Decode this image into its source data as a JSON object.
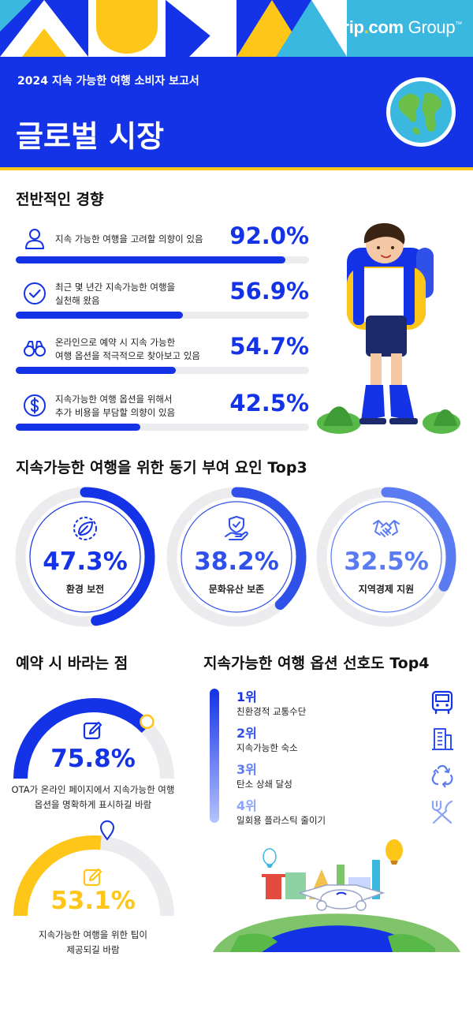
{
  "header": {
    "logo": {
      "part1": "Trip",
      "dot": ".",
      "part2": "com",
      "part3": " Group",
      "tm": "™"
    },
    "report_label": "2024 지속 가능한 여행 소비자 보고서",
    "title": "글로벌 시장"
  },
  "colors": {
    "blue": "#1432e6",
    "yellow": "#ffc61a",
    "light_blue": "#5b7bf2",
    "cyan": "#3ab8e0",
    "gray_track": "#ececef"
  },
  "overall": {
    "title": "전반적인 경향",
    "items": [
      {
        "icon": "person-icon",
        "label_lines": [
          "지속 가능한 여행을 고려할 의향이 있음"
        ],
        "value": "92.0%",
        "fraction": 0.92
      },
      {
        "icon": "check-circle-icon",
        "label_lines": [
          "최근 몇 년간 지속가능한 여행을",
          "실천해 왔음"
        ],
        "value": "56.9%",
        "fraction": 0.569
      },
      {
        "icon": "binoculars-icon",
        "label_lines": [
          "온라인으로 예약 시 지속 가능한",
          "여행 옵션을 적극적으로 찾아보고 있음"
        ],
        "value": "54.7%",
        "fraction": 0.547
      },
      {
        "icon": "dollar-coin-icon",
        "label_lines": [
          "지속가능한 여행 옵션을 위해서",
          "추가 비용을 부담할 의향이 있음"
        ],
        "value": "42.5%",
        "fraction": 0.425
      }
    ]
  },
  "motivations": {
    "title": "지속가능한 여행을 위한 동기 부여 요인 Top3",
    "items": [
      {
        "icon": "leaf-badge-icon",
        "value": "47.3%",
        "label": "환경 보전",
        "fraction": 0.473,
        "color": "#1432e6"
      },
      {
        "icon": "hand-shield-icon",
        "value": "38.2%",
        "label": "문화유산 보존",
        "fraction": 0.382,
        "color": "#3050ea"
      },
      {
        "icon": "handshake-icon",
        "value": "32.5%",
        "label": "지역경제 지원",
        "fraction": 0.325,
        "color": "#5b7bf2"
      }
    ]
  },
  "booking": {
    "title": "예약 시 바라는 점",
    "items": [
      {
        "icon": "edit-icon",
        "value": "75.8%",
        "fraction": 0.758,
        "color": "#1432e6",
        "text_lines": [
          "OTA가 온라인 페이지에서 지속가능한 여행",
          "옵션을 명확하게 표시하길 바람"
        ]
      },
      {
        "icon": "edit-icon",
        "value": "53.1%",
        "fraction": 0.531,
        "color": "#ffc61a",
        "text_lines": [
          "지속가능한 여행을 위한 팁이",
          "제공되길 바람"
        ]
      }
    ]
  },
  "preferences": {
    "title": "지속가능한 여행 옵션 선호도 Top4",
    "items": [
      {
        "rank": "1위",
        "label": "친환경적 교통수단",
        "icon": "bus-icon"
      },
      {
        "rank": "2위",
        "label": "지속가능한 숙소",
        "icon": "building-icon"
      },
      {
        "rank": "3위",
        "label": "탄소 상쇄 달성",
        "icon": "recycle-icon"
      },
      {
        "rank": "4위",
        "label": "일회용 플라스틱 줄이기",
        "icon": "utensils-icon"
      }
    ]
  }
}
